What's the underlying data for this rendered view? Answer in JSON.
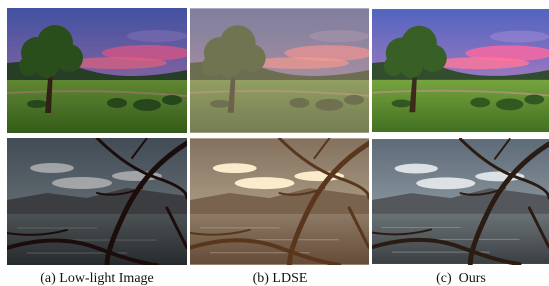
{
  "captions": [
    "(a) Low-light Image",
    "(b) LDSE",
    "(c)  Ours"
  ]
}
